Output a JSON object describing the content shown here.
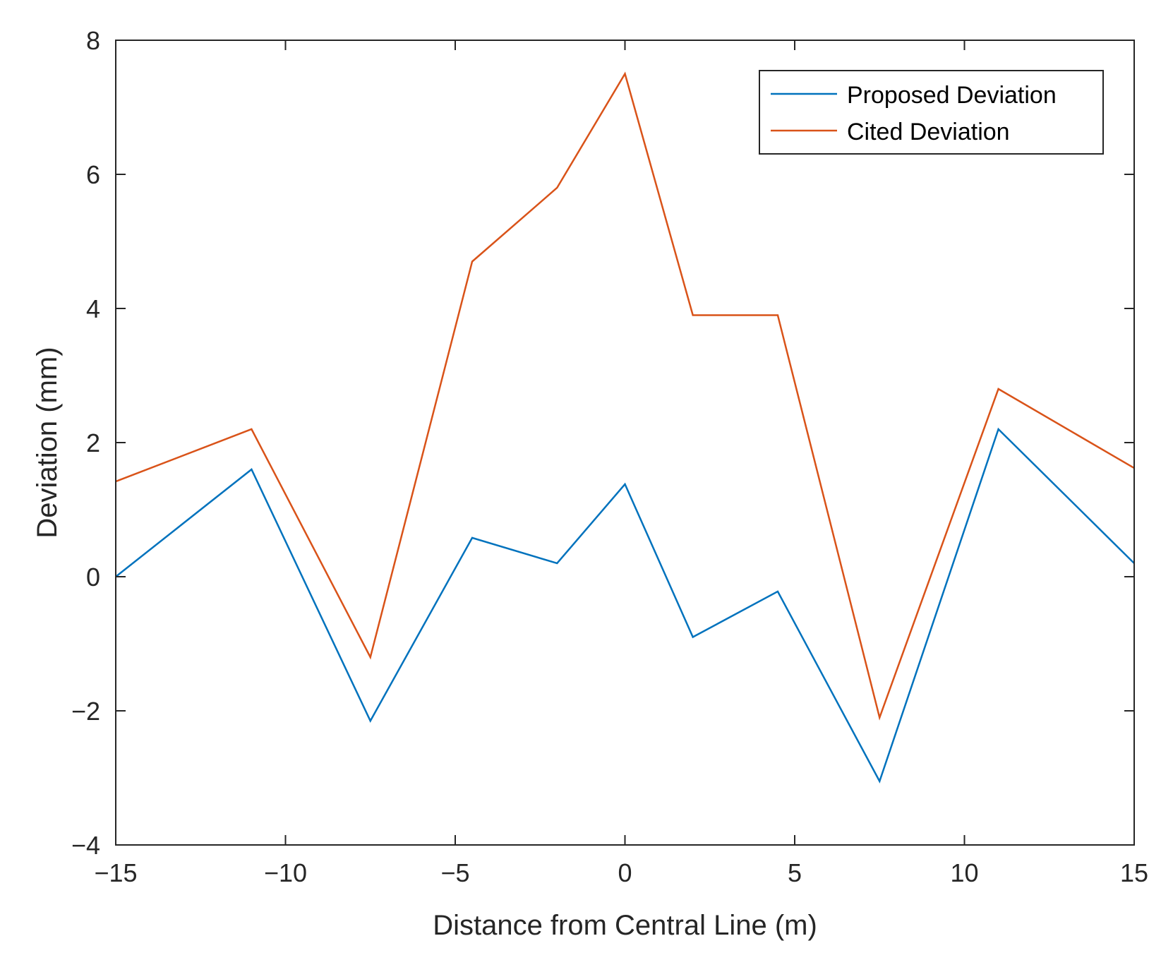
{
  "chart_data": {
    "type": "line",
    "title": "",
    "xlabel": "Distance from Central Line (m)",
    "ylabel": "Deviation (mm)",
    "xlim": [
      -15,
      15
    ],
    "ylim": [
      -4,
      8
    ],
    "xticks": [
      -15,
      -10,
      -5,
      0,
      5,
      10,
      15
    ],
    "xtick_labels": [
      "−15",
      "−10",
      "−5",
      "0",
      "5",
      "10",
      "15"
    ],
    "yticks": [
      -4,
      -2,
      0,
      2,
      4,
      6,
      8
    ],
    "ytick_labels": [
      "−4",
      "−2",
      "0",
      "2",
      "4",
      "6",
      "8"
    ],
    "grid": false,
    "legend_position": "top-right",
    "x": [
      -15,
      -11,
      -7.5,
      -4.5,
      -2,
      0,
      2,
      4.5,
      7.5,
      11,
      15
    ],
    "series": [
      {
        "name": "Proposed Deviation",
        "color": "#0072BD",
        "values": [
          0,
          1.6,
          -2.15,
          0.58,
          0.2,
          1.38,
          -0.9,
          -0.22,
          -3.05,
          2.2,
          0.2
        ]
      },
      {
        "name": "Cited Deviation",
        "color": "#D95319",
        "values": [
          1.42,
          2.2,
          -1.2,
          4.7,
          5.8,
          7.5,
          3.9,
          3.9,
          -2.1,
          2.8,
          1.62
        ]
      }
    ]
  }
}
